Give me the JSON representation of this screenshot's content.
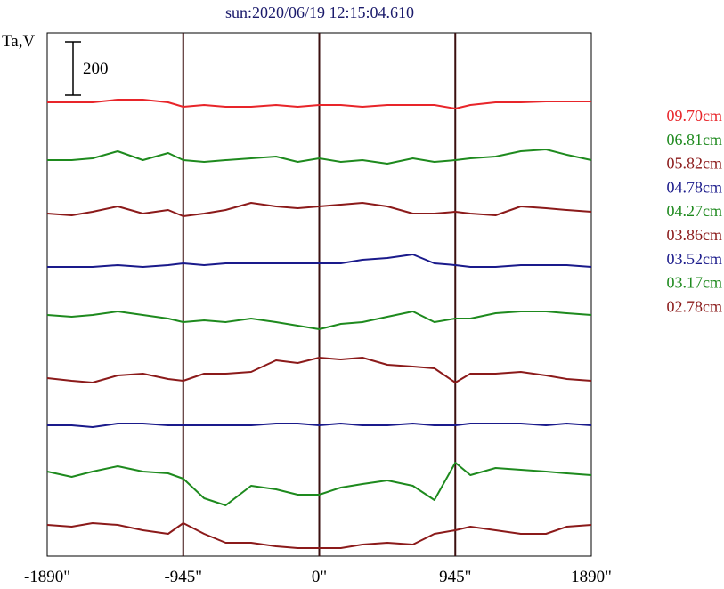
{
  "chart_data": {
    "type": "line",
    "title": "sun:2020/06/19 12:15:04.610",
    "ylabel": "Ta,V",
    "scale_bar_label": "200",
    "x_ticks": [
      {
        "value": -1890,
        "label": "-1890\""
      },
      {
        "value": -945,
        "label": "-945\""
      },
      {
        "value": 0,
        "label": "0\""
      },
      {
        "value": 945,
        "label": "945\""
      },
      {
        "value": 1890,
        "label": "1890\""
      }
    ],
    "xlim": [
      -1890,
      1890
    ],
    "vertical_markers": [
      -945,
      0,
      945
    ],
    "x": [
      -1890,
      -1720,
      -1575,
      -1400,
      -1225,
      -1050,
      -945,
      -800,
      -650,
      -473,
      -300,
      -150,
      0,
      150,
      300,
      473,
      650,
      800,
      945,
      1050,
      1225,
      1400,
      1575,
      1720,
      1890
    ],
    "series": [
      {
        "name": "09.70cm",
        "color": "#e8252a",
        "values": [
          -115,
          -115,
          -115,
          -112,
          -112,
          -115,
          -120,
          -118,
          -120,
          -120,
          -118,
          -120,
          -118,
          -118,
          -120,
          -118,
          -118,
          -118,
          -122,
          -118,
          -115,
          -115,
          -114,
          -114,
          -114
        ]
      },
      {
        "name": "06.81cm",
        "color": "#1e8a1e",
        "values": [
          -180,
          -180,
          -178,
          -170,
          -180,
          -172,
          -180,
          -182,
          -180,
          -178,
          -176,
          -182,
          -178,
          -182,
          -180,
          -184,
          -178,
          -182,
          -180,
          -178,
          -176,
          -170,
          -168,
          -174,
          -180
        ]
      },
      {
        "name": "05.82cm",
        "color": "#8b1a1a",
        "values": [
          -240,
          -242,
          -238,
          -232,
          -240,
          -236,
          -243,
          -240,
          -236,
          -228,
          -232,
          -234,
          -232,
          -230,
          -228,
          -232,
          -240,
          -240,
          -238,
          -240,
          -242,
          -232,
          -234,
          -236,
          -238
        ]
      },
      {
        "name": "04.78cm",
        "color": "#1a1a8b",
        "values": [
          -300,
          -300,
          -300,
          -298,
          -300,
          -298,
          -296,
          -298,
          -296,
          -296,
          -296,
          -296,
          -296,
          -296,
          -292,
          -290,
          -286,
          -296,
          -298,
          -300,
          -300,
          -298,
          -298,
          -298,
          -300
        ]
      },
      {
        "name": "04.27cm",
        "color": "#1e8a1e",
        "values": [
          -354,
          -356,
          -354,
          -350,
          -354,
          -358,
          -362,
          -360,
          -362,
          -358,
          -362,
          -366,
          -370,
          -364,
          -362,
          -356,
          -350,
          -362,
          -358,
          -358,
          -352,
          -350,
          -350,
          -352,
          -354
        ]
      },
      {
        "name": "03.86cm",
        "color": "#8b1a1a",
        "values": [
          -425,
          -428,
          -430,
          -422,
          -420,
          -426,
          -428,
          -420,
          -420,
          -418,
          -405,
          -408,
          -402,
          -404,
          -402,
          -410,
          -412,
          -414,
          -430,
          -420,
          -420,
          -418,
          -422,
          -426,
          -428
        ]
      },
      {
        "name": "03.52cm",
        "color": "#1a1a8b",
        "values": [
          -478,
          -478,
          -480,
          -476,
          -476,
          -478,
          -478,
          -478,
          -478,
          -478,
          -476,
          -476,
          -478,
          -476,
          -478,
          -478,
          -476,
          -478,
          -478,
          -476,
          -476,
          -476,
          -478,
          -476,
          -478
        ]
      },
      {
        "name": "03.17cm",
        "color": "#1e8a1e",
        "values": [
          -530,
          -536,
          -530,
          -524,
          -530,
          -532,
          -538,
          -560,
          -568,
          -546,
          -550,
          -556,
          -556,
          -548,
          -544,
          -540,
          -546,
          -562,
          -520,
          -534,
          -526,
          -528,
          -530,
          -532,
          -534
        ]
      },
      {
        "name": "02.78cm",
        "color": "#8b1a1a",
        "values": [
          -590,
          -592,
          -588,
          -590,
          -596,
          -600,
          -588,
          -600,
          -610,
          -610,
          -614,
          -616,
          -616,
          -616,
          -612,
          -610,
          -612,
          -600,
          -596,
          -592,
          -596,
          -600,
          -600,
          -592,
          -590
        ]
      }
    ]
  }
}
